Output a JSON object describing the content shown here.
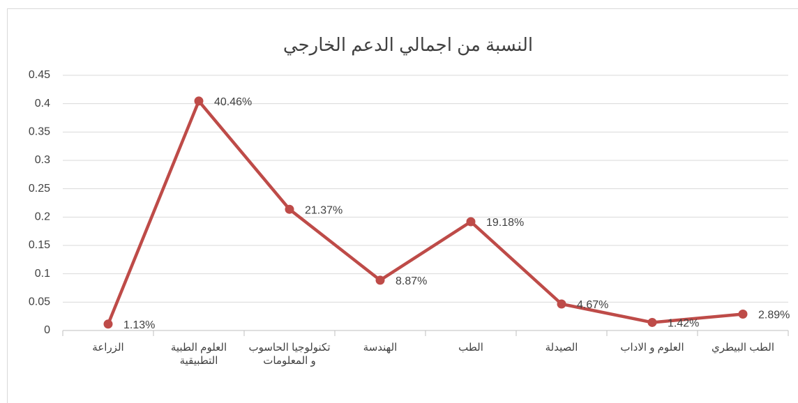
{
  "chart_data": {
    "type": "line",
    "title": "النسبة من اجمالي الدعم الخارجي",
    "categories": [
      "الزراعة",
      "العلوم الطبية التطبيقية",
      "تكنولوجيا الحاسوب و المعلومات",
      "الهندسة",
      "الطب",
      "الصيدلة",
      "العلوم و الاداب",
      "الطب البيطري"
    ],
    "values": [
      0.0113,
      0.4046,
      0.2137,
      0.0887,
      0.1918,
      0.0467,
      0.0142,
      0.0289
    ],
    "value_labels": [
      "1.13%",
      "40.46%",
      "21.37%",
      "8.87%",
      "19.18%",
      "4.67%",
      "1.42%",
      "2.89%"
    ],
    "color": "#be4b48",
    "ylim": [
      0,
      0.45
    ],
    "yticks": [
      0,
      0.05,
      0.1,
      0.15,
      0.2,
      0.25,
      0.3,
      0.35,
      0.4,
      0.45
    ],
    "grid": true
  }
}
